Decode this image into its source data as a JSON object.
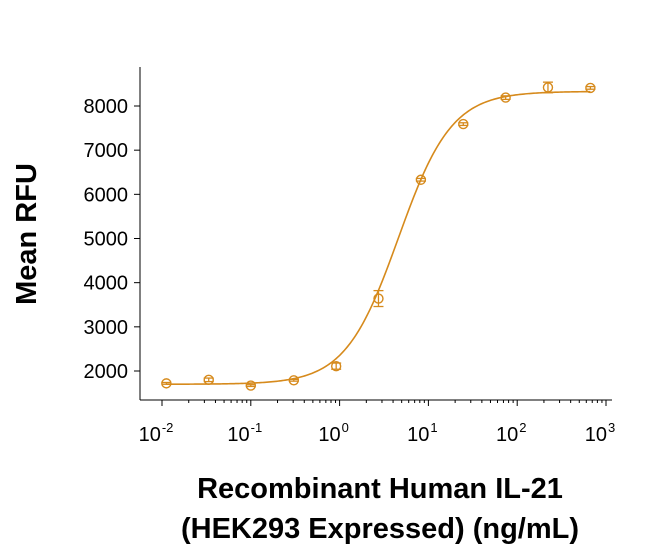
{
  "chart_data": {
    "type": "scatter",
    "xscale": "log",
    "xlim": [
      0.01,
      1000
    ],
    "ylim": [
      1200,
      8800
    ],
    "xticks": [
      {
        "base": "10",
        "exp": "-2",
        "value": 0.01
      },
      {
        "base": "10",
        "exp": "-1",
        "value": 0.1
      },
      {
        "base": "10",
        "exp": "0",
        "value": 1
      },
      {
        "base": "10",
        "exp": "1",
        "value": 10
      },
      {
        "base": "10",
        "exp": "2",
        "value": 100
      },
      {
        "base": "10",
        "exp": "3",
        "value": 1000
      }
    ],
    "yticks": [
      2000,
      3000,
      4000,
      5000,
      6000,
      7000,
      8000
    ],
    "ylabel": "Mean RFU",
    "xlabel_line1": "Recombinant Human IL-21",
    "xlabel_line2": "(HEK293 Expressed) (ng/mL)",
    "color": "#d68a1c",
    "grid": false,
    "series": [
      {
        "x": [
          0.0112,
          0.0336,
          0.1,
          0.305,
          0.915,
          2.74,
          8.23,
          24.7,
          74.1,
          222,
          667
        ],
        "y": [
          1720,
          1800,
          1670,
          1790,
          2110,
          3640,
          6330,
          7590,
          8190,
          8420,
          8410
        ],
        "err": [
          20,
          40,
          20,
          20,
          70,
          180,
          30,
          30,
          40,
          120,
          30
        ]
      }
    ],
    "fit": {
      "bottom": 1700,
      "top": 8330,
      "ec50": 4.6,
      "hill": 1.45
    }
  }
}
